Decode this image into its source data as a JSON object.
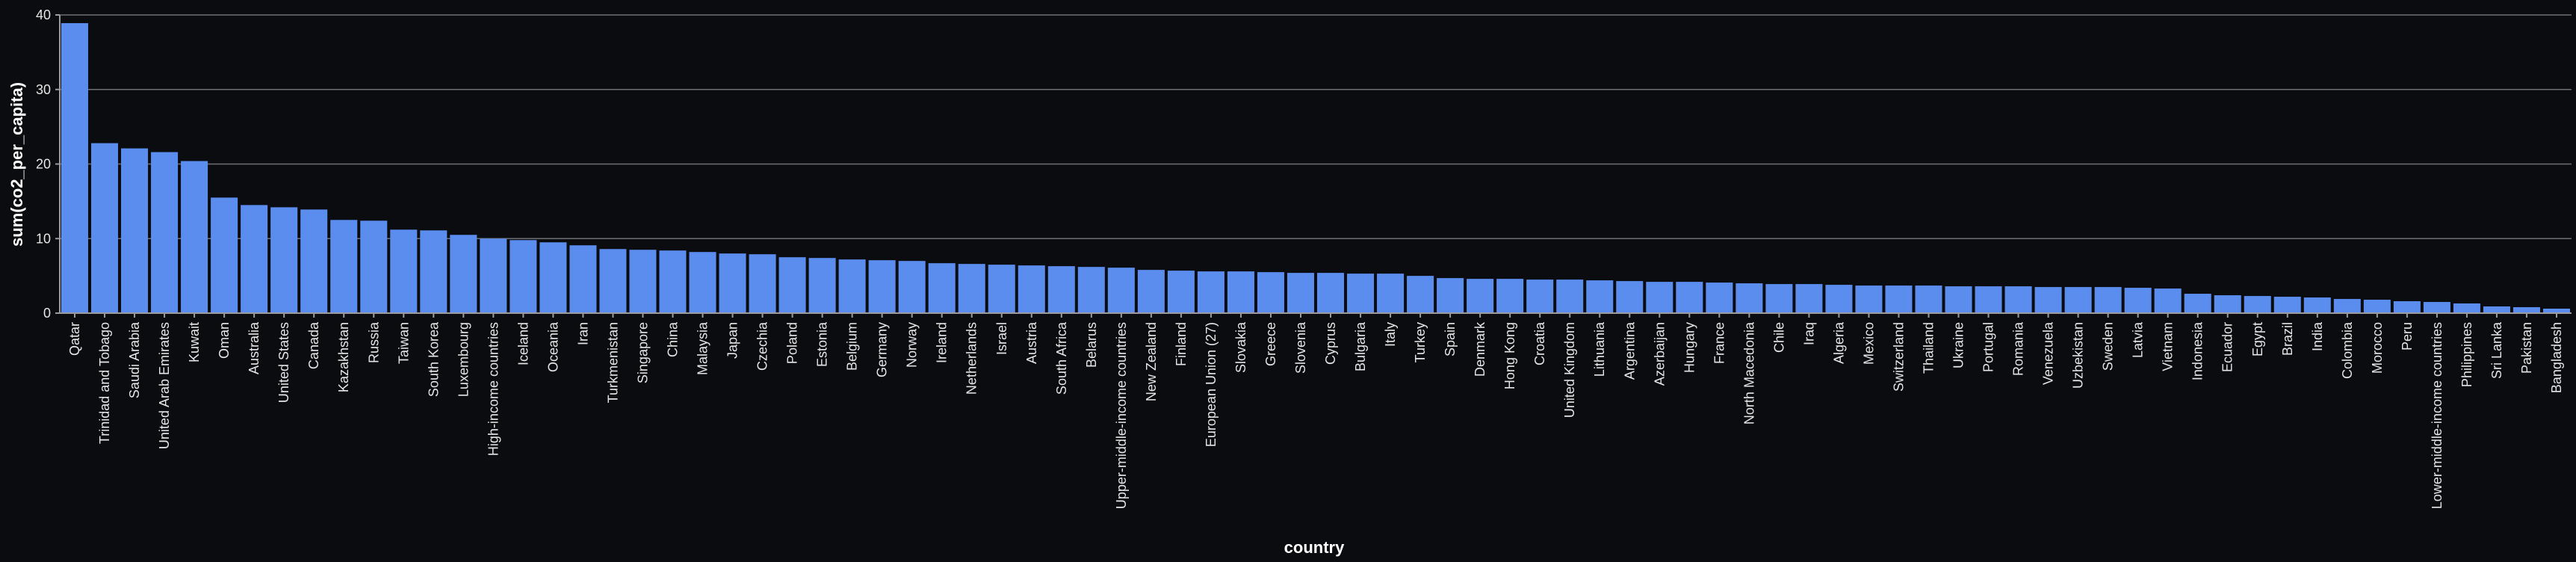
{
  "chart_data": {
    "type": "bar",
    "title": "",
    "xlabel": "country",
    "ylabel": "sum(co2_per_capita)",
    "ylim": [
      0,
      40
    ],
    "yticks": [
      0,
      10,
      20,
      30,
      40
    ],
    "grid": true,
    "bar_color": "#5b8def",
    "categories": [
      "Qatar",
      "Trinidad and Tobago",
      "Saudi Arabia",
      "United Arab Emirates",
      "Kuwait",
      "Oman",
      "Australia",
      "United States",
      "Canada",
      "Kazakhstan",
      "Russia",
      "Taiwan",
      "South Korea",
      "Luxembourg",
      "High-income countries",
      "Iceland",
      "Oceania",
      "Iran",
      "Turkmenistan",
      "Singapore",
      "China",
      "Malaysia",
      "Japan",
      "Czechia",
      "Poland",
      "Estonia",
      "Belgium",
      "Germany",
      "Norway",
      "Ireland",
      "Netherlands",
      "Israel",
      "Austria",
      "South Africa",
      "Belarus",
      "Upper-middle-income countries",
      "New Zealand",
      "Finland",
      "European Union (27)",
      "Slovakia",
      "Greece",
      "Slovenia",
      "Cyprus",
      "Bulgaria",
      "Italy",
      "Turkey",
      "Spain",
      "Denmark",
      "Hong Kong",
      "Croatia",
      "United Kingdom",
      "Lithuania",
      "Argentina",
      "Azerbaijan",
      "Hungary",
      "France",
      "North Macedonia",
      "Chile",
      "Iraq",
      "Algeria",
      "Mexico",
      "Switzerland",
      "Thailand",
      "Ukraine",
      "Portugal",
      "Romania",
      "Venezuela",
      "Uzbekistan",
      "Sweden",
      "Latvia",
      "Vietnam",
      "Indonesia",
      "Ecuador",
      "Egypt",
      "Brazil",
      "India",
      "Colombia",
      "Morocco",
      "Peru",
      "Lower-middle-income countries",
      "Philippines",
      "Sri Lanka",
      "Pakistan",
      "Bangladesh"
    ],
    "values": [
      38.9,
      22.8,
      22.1,
      21.6,
      20.4,
      15.5,
      14.5,
      14.2,
      13.9,
      12.5,
      12.4,
      11.2,
      11.1,
      10.5,
      10.0,
      9.8,
      9.5,
      9.1,
      8.6,
      8.5,
      8.4,
      8.2,
      8.0,
      7.9,
      7.5,
      7.4,
      7.2,
      7.1,
      7.0,
      6.7,
      6.6,
      6.5,
      6.4,
      6.3,
      6.2,
      6.1,
      5.8,
      5.7,
      5.6,
      5.6,
      5.5,
      5.4,
      5.4,
      5.3,
      5.3,
      5.0,
      4.7,
      4.6,
      4.6,
      4.5,
      4.5,
      4.4,
      4.3,
      4.2,
      4.2,
      4.1,
      4.0,
      3.9,
      3.9,
      3.8,
      3.7,
      3.7,
      3.7,
      3.6,
      3.6,
      3.6,
      3.5,
      3.5,
      3.5,
      3.4,
      3.3,
      2.6,
      2.4,
      2.3,
      2.2,
      2.1,
      1.9,
      1.8,
      1.6,
      1.5,
      1.3,
      0.9,
      0.8,
      0.6
    ]
  }
}
